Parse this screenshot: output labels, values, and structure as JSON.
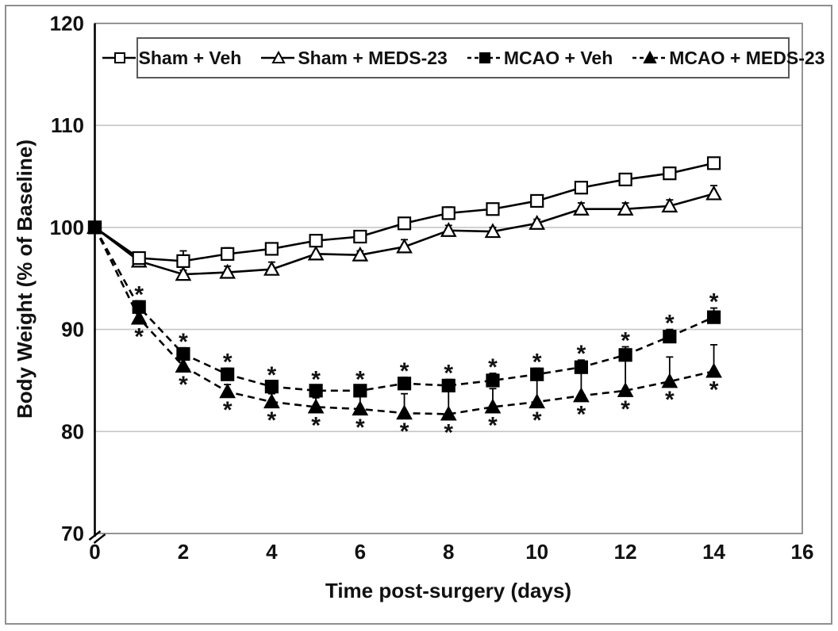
{
  "figure": {
    "kind": "scientific-line-chart",
    "background": "#ffffff"
  },
  "colors": {
    "line": "#000000",
    "text": "#111111",
    "gridline": "#c6c6c6",
    "plot_border": "#7a7a7a",
    "figure_border": "#8f8f8f",
    "axis": "#000000",
    "marker_open_fill": "#ffffff",
    "marker_filled_fill": "#000000"
  },
  "chart_data": {
    "type": "line",
    "title": "",
    "xlabel": "Time post-surgery (days)",
    "ylabel": "Body Weight (% of Baseline)",
    "xlim": [
      0,
      16
    ],
    "ylim": [
      70,
      120
    ],
    "xticks": [
      0,
      2,
      4,
      6,
      8,
      10,
      12,
      14,
      16
    ],
    "yticks": [
      70,
      80,
      90,
      100,
      110,
      120
    ],
    "grid": "horizontal",
    "axis_break_at_origin": true,
    "legend_position": "top-center-boxed",
    "significance_symbol": "*",
    "x": [
      0,
      1,
      2,
      3,
      4,
      5,
      6,
      7,
      8,
      9,
      10,
      11,
      12,
      13,
      14
    ],
    "series": [
      {
        "name": "Sham + Veh",
        "marker": "open-square",
        "line": "solid",
        "values": [
          100,
          97.0,
          96.7,
          97.4,
          97.9,
          98.7,
          99.1,
          100.4,
          101.4,
          101.8,
          102.6,
          103.9,
          104.7,
          105.3,
          106.3
        ],
        "sem": [
          0,
          0.4,
          1.0,
          0.6,
          0.4,
          0.4,
          0.4,
          0.4,
          0.6,
          0.4,
          0.4,
          0.4,
          0.4,
          0.6,
          0.4
        ],
        "asterisk": "none",
        "asterisk_days": []
      },
      {
        "name": "Sham + MEDS-23",
        "marker": "open-triangle",
        "line": "solid",
        "values": [
          100,
          96.7,
          95.4,
          95.6,
          95.9,
          97.4,
          97.3,
          98.1,
          99.7,
          99.6,
          100.4,
          101.8,
          101.8,
          102.1,
          103.3
        ],
        "sem": [
          0,
          0.4,
          0.4,
          0.6,
          0.7,
          0.8,
          0.4,
          0.7,
          0.5,
          0.4,
          0.4,
          0.6,
          0.6,
          0.6,
          0.8
        ],
        "asterisk": "none",
        "asterisk_days": []
      },
      {
        "name": "MCAO + Veh",
        "marker": "filled-square",
        "line": "dashed",
        "values": [
          100,
          92.2,
          87.6,
          85.6,
          84.4,
          84.0,
          84.0,
          84.7,
          84.5,
          85.0,
          85.6,
          86.3,
          87.5,
          89.3,
          91.2
        ],
        "sem": [
          0,
          0.6,
          0.6,
          0.6,
          0.5,
          0.5,
          0.5,
          0.6,
          0.6,
          0.7,
          0.6,
          0.7,
          0.8,
          0.7,
          0.9
        ],
        "asterisk": "above",
        "asterisk_days": [
          1,
          2,
          3,
          4,
          5,
          6,
          7,
          8,
          9,
          10,
          11,
          12,
          13,
          14
        ]
      },
      {
        "name": "MCAO + MEDS-23",
        "marker": "filled-triangle",
        "line": "dashed",
        "values": [
          100,
          91.1,
          86.4,
          83.9,
          82.9,
          82.4,
          82.2,
          81.8,
          81.7,
          82.4,
          82.9,
          83.5,
          84.0,
          84.9,
          85.9
        ],
        "sem": [
          0,
          0.7,
          0.7,
          0.7,
          0.8,
          0.9,
          1.5,
          1.9,
          2.3,
          1.8,
          2.5,
          2.8,
          3.0,
          2.4,
          2.6
        ],
        "asterisk": "below",
        "asterisk_days": [
          1,
          2,
          3,
          4,
          5,
          6,
          7,
          8,
          9,
          10,
          11,
          12,
          13,
          14
        ]
      }
    ]
  }
}
